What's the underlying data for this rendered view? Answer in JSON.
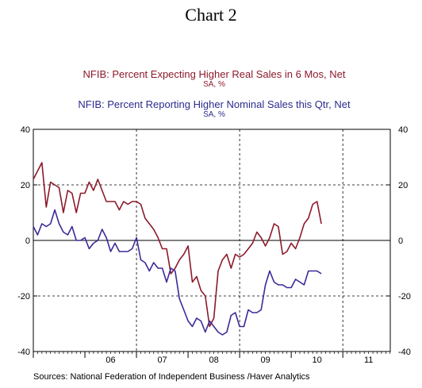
{
  "title": "Chart 2",
  "source": "Sources:  National Federation of Independent Business /Haver Analytics",
  "chart_data": {
    "type": "line",
    "x_ticks": [
      "06",
      "07",
      "08",
      "09",
      "10",
      "11"
    ],
    "y_ticks": [
      40,
      20,
      0,
      -20,
      -40
    ],
    "ylim": [
      -40,
      40
    ],
    "xlim": [
      2005.0,
      2011.92
    ],
    "dashed_vertical_years": [
      2007,
      2009,
      2011
    ],
    "dashed_horizontal": [
      20,
      -20
    ],
    "zero_line": true,
    "axis_labels_both_sides": true,
    "colors": {
      "real": "#8b1a2b",
      "nominal": "#3b2a99"
    },
    "series": [
      {
        "name": "NFIB: Percent Expecting Higher Real Sales in 6 Mos, Net",
        "units": "SA, %",
        "start": "2005-01",
        "values": [
          22,
          25,
          28,
          12,
          21,
          20,
          19,
          10,
          18,
          17,
          10,
          17,
          17,
          21,
          18,
          22,
          18,
          14,
          14,
          14,
          11,
          14,
          13,
          14,
          14,
          13,
          8,
          6,
          4,
          1,
          -3,
          -3,
          -12,
          -10,
          -7,
          -5,
          -2,
          -15,
          -13,
          -18,
          -20,
          -31,
          -28,
          -11,
          -7,
          -5,
          -10,
          -5,
          -6,
          -5,
          -3,
          -1,
          3,
          1,
          -2,
          1,
          6,
          5,
          -5,
          -4,
          -1,
          -3,
          1,
          6,
          8,
          13,
          14,
          6
        ]
      },
      {
        "name": "NFIB: Percent Reporting Higher Nominal Sales this Qtr, Net",
        "units": "SA, %",
        "start": "2005-01",
        "values": [
          5,
          2,
          6,
          5,
          6,
          11,
          6,
          3,
          2,
          5,
          0,
          0,
          1,
          -3,
          -1,
          0,
          4,
          1,
          -4,
          -1,
          -4,
          -4,
          -4,
          -3,
          1,
          -7,
          -8,
          -11,
          -8,
          -10,
          -10,
          -15,
          -10,
          -11,
          -21,
          -25,
          -29,
          -31,
          -28,
          -29,
          -33,
          -29,
          -31,
          -33,
          -34,
          -33,
          -27,
          -26,
          -31,
          -31,
          -25,
          -26,
          -26,
          -25,
          -16,
          -11,
          -15,
          -16,
          -16,
          -17,
          -17,
          -14,
          -15,
          -16,
          -11,
          -11,
          -11,
          -12
        ]
      }
    ]
  }
}
